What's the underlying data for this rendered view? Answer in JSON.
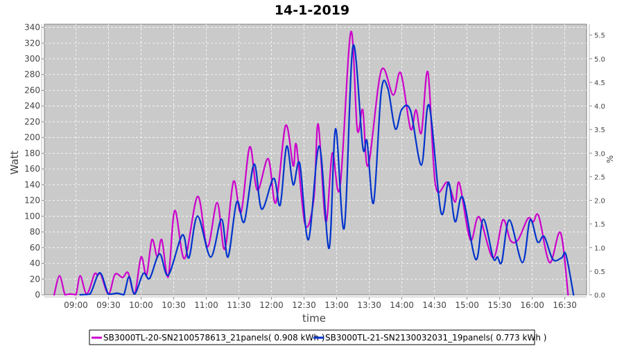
{
  "chart_data": {
    "type": "line",
    "title": "14-1-2019",
    "xlabel": "time",
    "ylabel": "Watt",
    "y2label": "%",
    "xlim": [
      "08:31",
      "16:50"
    ],
    "ylim": [
      0,
      344
    ],
    "y2lim": [
      0,
      5.73
    ],
    "grid": true,
    "legend_position": "bottom",
    "x_ticks": [
      "09:00",
      "09:30",
      "10:00",
      "10:30",
      "11:00",
      "11:30",
      "12:00",
      "12:30",
      "13:00",
      "13:30",
      "14:00",
      "14:30",
      "15:00",
      "15:30",
      "16:00",
      "16:30"
    ],
    "y_ticks": [
      0,
      20,
      40,
      60,
      80,
      100,
      120,
      140,
      160,
      180,
      200,
      220,
      240,
      260,
      280,
      300,
      320,
      340
    ],
    "y2_ticks": [
      "0.0",
      "0.5",
      "1.0",
      "1.5",
      "2.0",
      "2.5",
      "3.0",
      "3.5",
      "4.0",
      "4.5",
      "5.0",
      "5.5"
    ],
    "series": [
      {
        "name": "SB3000TL-20-SN2100578613_21panels( 0.908 kWh )",
        "color": "#cc00cc",
        "points": [
          [
            "08:40",
            0
          ],
          [
            "08:45",
            24
          ],
          [
            "08:50",
            0
          ],
          [
            "08:55",
            1
          ],
          [
            "09:00",
            0
          ],
          [
            "09:04",
            24
          ],
          [
            "09:10",
            1
          ],
          [
            "09:17",
            26
          ],
          [
            "09:20",
            25
          ],
          [
            "09:23",
            26
          ],
          [
            "09:30",
            1
          ],
          [
            "09:36",
            26
          ],
          [
            "09:43",
            22
          ],
          [
            "09:48",
            28
          ],
          [
            "09:54",
            1
          ],
          [
            "10:00",
            48
          ],
          [
            "10:05",
            25
          ],
          [
            "10:10",
            70
          ],
          [
            "10:15",
            48
          ],
          [
            "10:19",
            70
          ],
          [
            "10:25",
            23
          ],
          [
            "10:31",
            107
          ],
          [
            "10:40",
            46
          ],
          [
            "10:52",
            125
          ],
          [
            "11:01",
            61
          ],
          [
            "11:10",
            117
          ],
          [
            "11:17",
            58
          ],
          [
            "11:25",
            144
          ],
          [
            "11:32",
            105
          ],
          [
            "11:40",
            188
          ],
          [
            "11:47",
            133
          ],
          [
            "11:57",
            173
          ],
          [
            "12:04",
            117
          ],
          [
            "12:13",
            215
          ],
          [
            "12:20",
            164
          ],
          [
            "12:23",
            190
          ],
          [
            "12:31",
            89
          ],
          [
            "12:39",
            122
          ],
          [
            "12:43",
            217
          ],
          [
            "12:50",
            93
          ],
          [
            "12:56",
            180
          ],
          [
            "13:03",
            136
          ],
          [
            "13:13",
            334
          ],
          [
            "13:19",
            210
          ],
          [
            "13:24",
            235
          ],
          [
            "13:29",
            164
          ],
          [
            "13:41",
            285
          ],
          [
            "13:52",
            254
          ],
          [
            "13:59",
            282
          ],
          [
            "14:08",
            211
          ],
          [
            "14:13",
            235
          ],
          [
            "14:18",
            206
          ],
          [
            "14:24",
            283
          ],
          [
            "14:31",
            139
          ],
          [
            "14:42",
            143
          ],
          [
            "14:49",
            118
          ],
          [
            "14:53",
            142
          ],
          [
            "15:03",
            70
          ],
          [
            "15:11",
            99
          ],
          [
            "15:24",
            47
          ],
          [
            "15:33",
            95
          ],
          [
            "15:40",
            69
          ],
          [
            "15:47",
            70
          ],
          [
            "15:56",
            97
          ],
          [
            "16:01",
            93
          ],
          [
            "16:06",
            100
          ],
          [
            "16:16",
            41
          ],
          [
            "16:26",
            79
          ],
          [
            "16:33",
            0
          ]
        ]
      },
      {
        "name": "SB3000TL-21-SN2130032031_19panels( 0.773 kWh )",
        "color": "#0033cc",
        "points": [
          [
            "09:04",
            0
          ],
          [
            "09:13",
            1
          ],
          [
            "09:22",
            28
          ],
          [
            "09:30",
            1
          ],
          [
            "09:38",
            2
          ],
          [
            "09:44",
            0
          ],
          [
            "09:49",
            23
          ],
          [
            "09:54",
            1
          ],
          [
            "10:02",
            27
          ],
          [
            "10:08",
            21
          ],
          [
            "10:17",
            52
          ],
          [
            "10:25",
            25
          ],
          [
            "10:38",
            76
          ],
          [
            "10:44",
            47
          ],
          [
            "10:52",
            100
          ],
          [
            "11:04",
            48
          ],
          [
            "11:14",
            96
          ],
          [
            "11:20",
            48
          ],
          [
            "11:28",
            118
          ],
          [
            "11:35",
            93
          ],
          [
            "11:44",
            166
          ],
          [
            "11:51",
            109
          ],
          [
            "12:02",
            148
          ],
          [
            "12:08",
            114
          ],
          [
            "12:14",
            189
          ],
          [
            "12:20",
            140
          ],
          [
            "12:26",
            167
          ],
          [
            "12:34",
            70
          ],
          [
            "12:44",
            189
          ],
          [
            "12:53",
            59
          ],
          [
            "12:59",
            211
          ],
          [
            "13:07",
            85
          ],
          [
            "13:15",
            316
          ],
          [
            "13:24",
            188
          ],
          [
            "13:28",
            195
          ],
          [
            "13:34",
            117
          ],
          [
            "13:41",
            258
          ],
          [
            "13:47",
            263
          ],
          [
            "13:54",
            211
          ],
          [
            "14:00",
            236
          ],
          [
            "14:08",
            234
          ],
          [
            "14:18",
            165
          ],
          [
            "14:25",
            241
          ],
          [
            "14:36",
            105
          ],
          [
            "14:43",
            143
          ],
          [
            "14:49",
            93
          ],
          [
            "14:56",
            124
          ],
          [
            "15:08",
            45
          ],
          [
            "15:15",
            96
          ],
          [
            "15:24",
            47
          ],
          [
            "15:28",
            48
          ],
          [
            "15:32",
            42
          ],
          [
            "15:39",
            95
          ],
          [
            "15:51",
            41
          ],
          [
            "15:58",
            95
          ],
          [
            "16:05",
            67
          ],
          [
            "16:11",
            74
          ],
          [
            "16:19",
            45
          ],
          [
            "16:27",
            47
          ],
          [
            "16:31",
            51
          ],
          [
            "16:38",
            0
          ]
        ]
      }
    ]
  }
}
